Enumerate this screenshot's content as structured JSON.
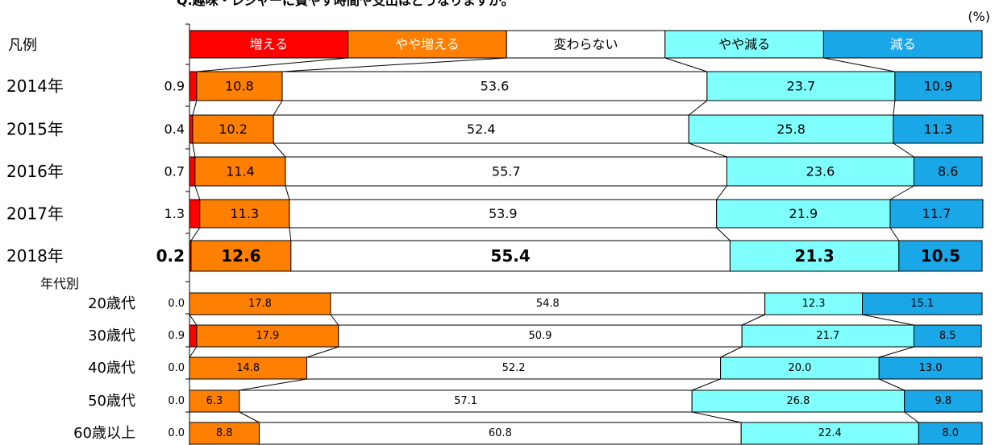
{
  "chart_data": {
    "type": "bar",
    "stacked": true,
    "orientation": "horizontal",
    "title": "Q.趣味・レジャーに費やす時間や支出はどうなりますか。",
    "unit_label": "(%)",
    "legend_label": "凡例",
    "group_label": "年代別",
    "series": [
      {
        "name": "増える",
        "color": "#ff0000"
      },
      {
        "name": "やや増える",
        "color": "#ff8000"
      },
      {
        "name": "変わらない",
        "color": "#ffffff"
      },
      {
        "name": "やや減る",
        "color": "#80ffff"
      },
      {
        "name": "減る",
        "color": "#1aa7e8"
      }
    ],
    "rows": [
      {
        "label": "2014年",
        "group": "year",
        "values": [
          0.9,
          10.8,
          53.6,
          23.7,
          10.9
        ]
      },
      {
        "label": "2015年",
        "group": "year",
        "values": [
          0.4,
          10.2,
          52.4,
          25.8,
          11.3
        ]
      },
      {
        "label": "2016年",
        "group": "year",
        "values": [
          0.7,
          11.4,
          55.7,
          23.6,
          8.6
        ]
      },
      {
        "label": "2017年",
        "group": "year",
        "values": [
          1.3,
          11.3,
          53.9,
          21.9,
          11.7
        ]
      },
      {
        "label": "2018年",
        "group": "year",
        "bold": true,
        "values": [
          0.2,
          12.6,
          55.4,
          21.3,
          10.5
        ]
      },
      {
        "label": "20歳代",
        "group": "age",
        "values": [
          0.0,
          17.8,
          54.8,
          12.3,
          15.1
        ]
      },
      {
        "label": "30歳代",
        "group": "age",
        "values": [
          0.9,
          17.9,
          50.9,
          21.7,
          8.5
        ]
      },
      {
        "label": "40歳代",
        "group": "age",
        "values": [
          0.0,
          14.8,
          52.2,
          20.0,
          13.0
        ]
      },
      {
        "label": "50歳代",
        "group": "age",
        "values": [
          0.0,
          6.3,
          57.1,
          26.8,
          9.8
        ]
      },
      {
        "label": "60歳以上",
        "group": "age",
        "values": [
          0.0,
          8.8,
          60.8,
          22.4,
          8.0
        ]
      }
    ]
  }
}
